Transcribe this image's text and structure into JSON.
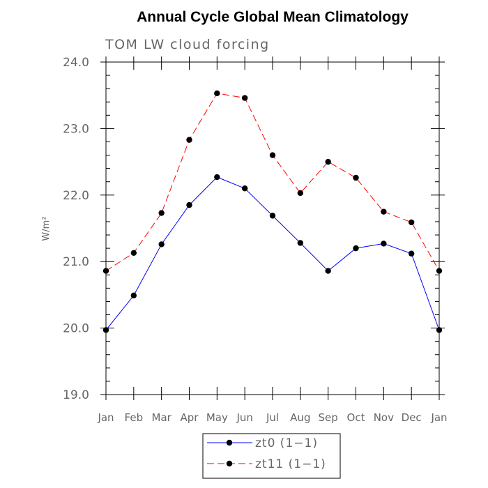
{
  "chart_data": {
    "type": "line",
    "title": "Annual Cycle Global Mean Climatology",
    "subtitle": "TOM LW cloud forcing",
    "ylabel": "W/m²",
    "xlabel": "",
    "categories": [
      "Jan",
      "Feb",
      "Mar",
      "Apr",
      "May",
      "Jun",
      "Jul",
      "Aug",
      "Sep",
      "Oct",
      "Nov",
      "Dec",
      "Jan"
    ],
    "ylim": [
      19.0,
      24.0
    ],
    "yticks": [
      "19.0",
      "20.0",
      "21.0",
      "22.0",
      "23.0",
      "24.0"
    ],
    "legend_position": "bottom",
    "grid": false,
    "series": [
      {
        "name": "zt0 (1−1)",
        "color": "#0000ff",
        "dash": "solid",
        "values": [
          19.97,
          20.49,
          21.26,
          21.85,
          22.27,
          22.1,
          21.69,
          21.28,
          20.86,
          21.2,
          21.27,
          21.12,
          19.97
        ]
      },
      {
        "name": "zt11 (1−1)",
        "color": "#ff0000",
        "dash": "dashed",
        "values": [
          20.86,
          21.13,
          21.73,
          22.83,
          23.53,
          23.46,
          22.6,
          22.03,
          22.5,
          22.26,
          21.75,
          21.59,
          20.86
        ]
      }
    ]
  }
}
